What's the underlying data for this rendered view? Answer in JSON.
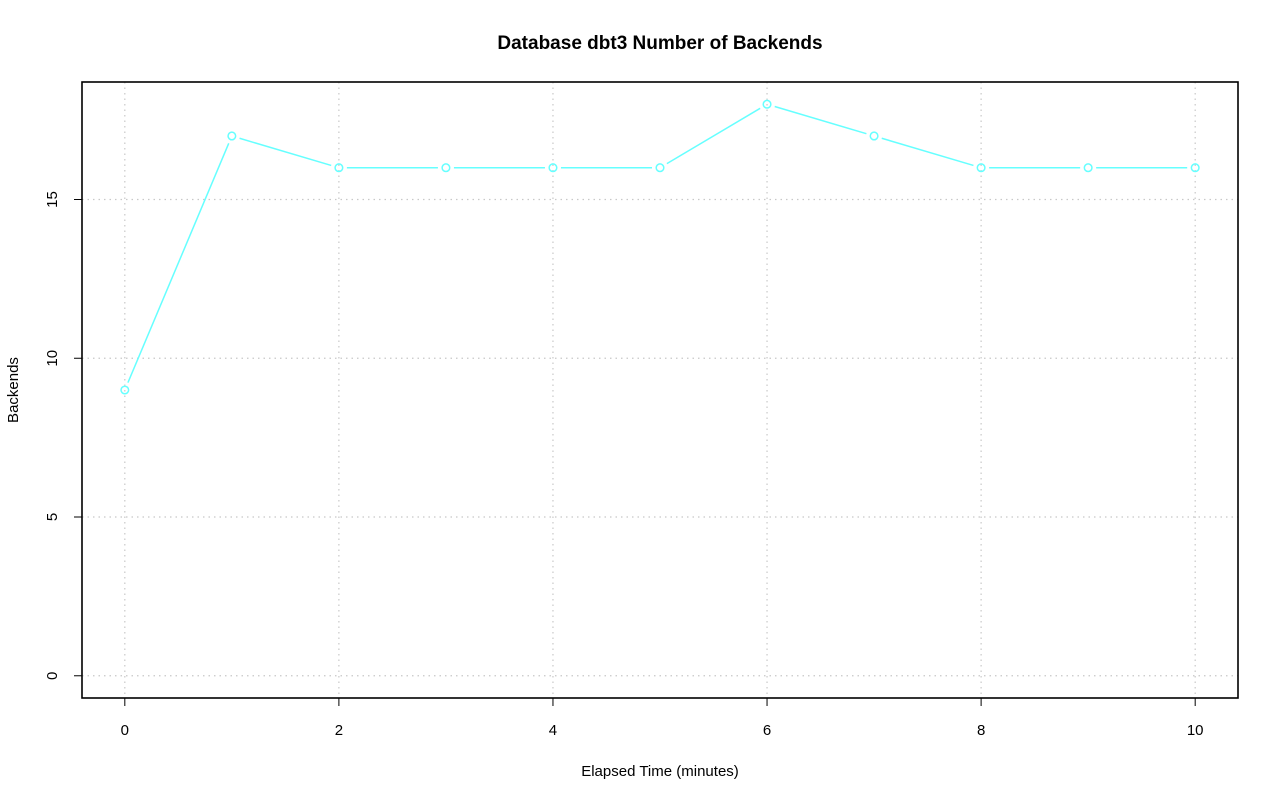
{
  "chart_data": {
    "type": "line",
    "title": "Database dbt3 Number of Backends",
    "xlabel": "Elapsed Time (minutes)",
    "ylabel": "Backends",
    "xlim": [
      -0.4,
      10.4
    ],
    "ylim": [
      -0.7,
      18.7
    ],
    "xticks": [
      0,
      2,
      4,
      6,
      8,
      10
    ],
    "yticks": [
      0,
      5,
      10,
      15
    ],
    "grid": true,
    "x": [
      0,
      1,
      2,
      3,
      4,
      5,
      6,
      7,
      8,
      9,
      10
    ],
    "series": [
      {
        "values": [
          9,
          17,
          16,
          16,
          16,
          16,
          18,
          17,
          16,
          16,
          16
        ],
        "color": "#66ffff"
      }
    ]
  }
}
